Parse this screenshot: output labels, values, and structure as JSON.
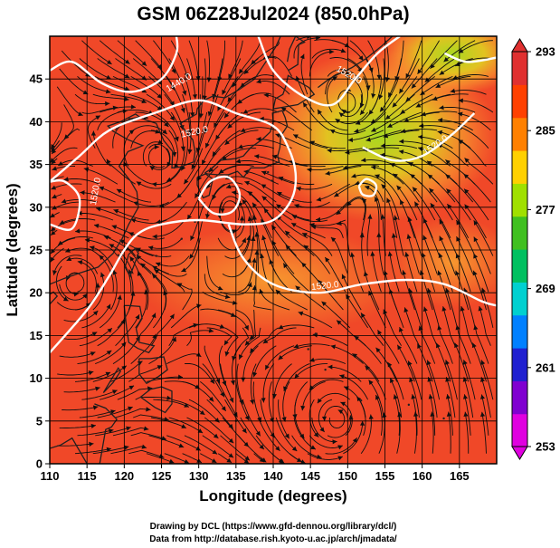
{
  "chart_data": {
    "type": "heatmap",
    "title": "GSM 06Z28Jul2024 (850.0hPa)",
    "xlabel": "Longitude (degrees)",
    "ylabel": "Latitude (degrees)",
    "xlim": [
      110,
      170
    ],
    "ylim": [
      0,
      50
    ],
    "x_ticks": [
      "110",
      "115",
      "120",
      "125",
      "130",
      "135",
      "140",
      "145",
      "150",
      "155",
      "160",
      "165"
    ],
    "x_tick_values": [
      110,
      115,
      120,
      125,
      130,
      135,
      140,
      145,
      150,
      155,
      160,
      165
    ],
    "y_ticks": [
      "0",
      "5",
      "10",
      "15",
      "20",
      "25",
      "30",
      "35",
      "40",
      "45"
    ],
    "y_tick_values": [
      0,
      5,
      10,
      15,
      20,
      25,
      30,
      35,
      40,
      45
    ],
    "grid": true,
    "colorbar": {
      "label_values": [
        "253",
        "261",
        "269",
        "277",
        "285",
        "293"
      ],
      "values": [
        253,
        261,
        269,
        277,
        285,
        293
      ],
      "range": [
        253,
        293
      ],
      "colors": [
        "#e000e0",
        "#8000d0",
        "#2020d0",
        "#0080ff",
        "#00d0d0",
        "#00c060",
        "#40c020",
        "#a0e000",
        "#ffd000",
        "#ff8000",
        "#ff4000",
        "#e03030"
      ],
      "placement": "right"
    },
    "field_colors": {
      "warm": "#f04828",
      "hot": "#e83820",
      "mild": "#f89030",
      "cool": "#a8d820",
      "coastline": "#202020",
      "streamline": "#101010",
      "contour": "#ffffff"
    },
    "contours": [
      {
        "label": "1440.0",
        "points": [
          [
            110,
            46
          ],
          [
            113,
            47
          ],
          [
            117,
            44.5
          ],
          [
            121,
            43.5
          ],
          [
            125,
            45
          ],
          [
            127,
            48
          ],
          [
            127,
            50
          ]
        ]
      },
      {
        "label": "1520.0",
        "points": [
          [
            110,
            33
          ],
          [
            114,
            36
          ],
          [
            118,
            39
          ],
          [
            124,
            41
          ],
          [
            130,
            42.5
          ],
          [
            135,
            41
          ],
          [
            140,
            39.5
          ],
          [
            142,
            37
          ],
          [
            143,
            34
          ],
          [
            142.5,
            31
          ],
          [
            140,
            28.5
          ],
          [
            136,
            28
          ],
          [
            130,
            28.5
          ],
          [
            125,
            28
          ],
          [
            122,
            27
          ],
          [
            120,
            25
          ],
          [
            118,
            22
          ],
          [
            115,
            18
          ],
          [
            110,
            13
          ]
        ]
      },
      {
        "label": "1520.0",
        "points": [
          [
            110,
            28
          ],
          [
            113,
            27.5
          ],
          [
            114,
            31
          ],
          [
            112,
            33
          ],
          [
            110,
            33
          ]
        ]
      },
      {
        "label": "1520.0",
        "points": [
          [
            134,
            28
          ],
          [
            136,
            24
          ],
          [
            140,
            21
          ],
          [
            146,
            20
          ],
          [
            152,
            21
          ],
          [
            158,
            21.5
          ],
          [
            163,
            21
          ],
          [
            168,
            19
          ],
          [
            170,
            18.5
          ]
        ]
      },
      {
        "label": "1520.0",
        "points": [
          [
            138,
            50
          ],
          [
            140,
            46
          ],
          [
            144,
            43
          ],
          [
            148,
            42
          ],
          [
            151,
            45
          ],
          [
            154,
            48
          ],
          [
            157,
            50
          ]
        ]
      },
      {
        "label": "1520.0",
        "points": [
          [
            152,
            37
          ],
          [
            156,
            35.5
          ],
          [
            160,
            36
          ],
          [
            164,
            38.5
          ],
          [
            167,
            41
          ]
        ]
      },
      {
        "label": "",
        "points": [
          [
            163,
            48
          ],
          [
            166,
            47
          ],
          [
            170,
            47.5
          ]
        ]
      },
      {
        "label": "",
        "points": [
          [
            130,
            31
          ],
          [
            131.5,
            33
          ],
          [
            134,
            33.5
          ],
          [
            135.5,
            31.5
          ],
          [
            134.5,
            29.5
          ],
          [
            132,
            29.3
          ],
          [
            130,
            31
          ]
        ]
      },
      {
        "label": "",
        "points": [
          [
            151.5,
            32.5
          ],
          [
            152.5,
            33.3
          ],
          [
            153.8,
            32.6
          ],
          [
            153.4,
            31.4
          ],
          [
            152,
            31.5
          ],
          [
            151.5,
            32.5
          ]
        ]
      }
    ],
    "contour_labels": [
      {
        "text": "1440.0",
        "x": 127.5,
        "y": 44.3,
        "angle": -30
      },
      {
        "text": "1520.0",
        "x": 129.5,
        "y": 38.5,
        "angle": -12
      },
      {
        "text": "1520.0",
        "x": 116.5,
        "y": 31.8,
        "angle": -80
      },
      {
        "text": "1520.0",
        "x": 147,
        "y": 20.5,
        "angle": -6
      },
      {
        "text": "1520.0",
        "x": 150,
        "y": 45.2,
        "angle": 30
      },
      {
        "text": "1520.0",
        "x": 162,
        "y": 37,
        "angle": -35
      }
    ],
    "vortices": [
      {
        "x": 150.5,
        "y": 40.5,
        "sense": "cw"
      },
      {
        "x": 133.5,
        "y": 31.5,
        "sense": "ccw"
      },
      {
        "x": 152.5,
        "y": 32.5,
        "sense": "ccw"
      },
      {
        "x": 149,
        "y": 5,
        "sense": "ccw"
      },
      {
        "x": 126,
        "y": 35,
        "sense": "cw"
      },
      {
        "x": 113.5,
        "y": 21,
        "sense": "ccw"
      }
    ]
  },
  "credits": {
    "line1": "Drawing by DCL (https://www.gfd-dennou.org/library/dcl/)",
    "line2": "Data from http://database.rish.kyoto-u.ac.jp/arch/jmadata/"
  }
}
